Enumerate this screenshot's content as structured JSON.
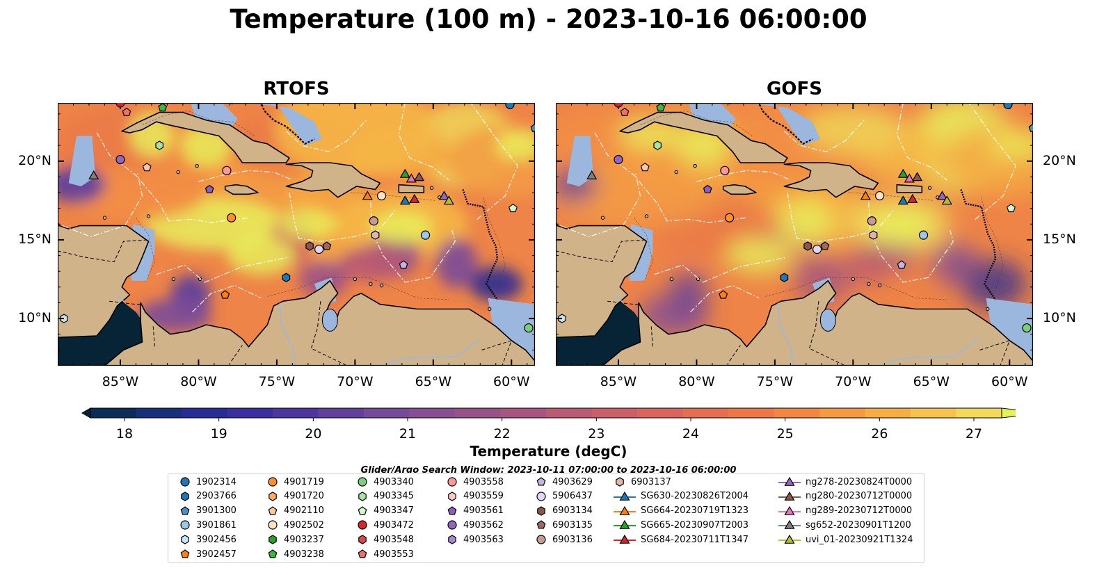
{
  "title": "Temperature (100 m) - 2023-10-16 06:00:00",
  "panels": [
    {
      "title": "RTOFS",
      "y_tick_side": "left"
    },
    {
      "title": "GOFS",
      "y_tick_side": "right"
    }
  ],
  "lon_ticks": [
    {
      "value": -85,
      "label": "85°W"
    },
    {
      "value": -80,
      "label": "80°W"
    },
    {
      "value": -75,
      "label": "75°W"
    },
    {
      "value": -70,
      "label": "70°W"
    },
    {
      "value": -65,
      "label": "65°W"
    },
    {
      "value": -60,
      "label": "60°W"
    }
  ],
  "lat_ticks": [
    {
      "value": 20,
      "label": "20°N"
    },
    {
      "value": 15,
      "label": "15°N"
    },
    {
      "value": 10,
      "label": "10°N"
    }
  ],
  "map_extent": {
    "lon": [
      -89,
      -58.5
    ],
    "lat": [
      7,
      23.7
    ]
  },
  "colorbar": {
    "label": "Temperature (degC)",
    "min": 18,
    "max": 27,
    "step": 0.5,
    "ticks": [
      18,
      19,
      20,
      21,
      22,
      23,
      24,
      25,
      26,
      27
    ],
    "extend": "both",
    "colormap": [
      "#062436",
      "#0a2c55",
      "#17307a",
      "#272d93",
      "#3a2f9c",
      "#4d379e",
      "#61409c",
      "#754a98",
      "#874f91",
      "#975388",
      "#a8567f",
      "#b95b74",
      "#c96069",
      "#d8665e",
      "#e46e52",
      "#ec7849",
      "#f18743",
      "#f49a42",
      "#f6ad46",
      "#f6c44e",
      "#f1d95b",
      "#e7f25b"
    ]
  },
  "search_window": "Glider/Argo Search Window: 2023-10-11 07:00:00 to 2023-10-16 06:00:00",
  "colors": {
    "land": "#d1b38a",
    "shelf": "#9cb7de",
    "coast": "#000000"
  },
  "legend": {
    "columns": [
      [
        {
          "label": "1902314",
          "marker": "circle",
          "color": "#1f77b4"
        },
        {
          "label": "2903766",
          "marker": "hexagon",
          "color": "#1f77b4"
        },
        {
          "label": "3901300",
          "marker": "pentagon",
          "color": "#4a90c4"
        },
        {
          "label": "3901861",
          "marker": "circle",
          "color": "#9ec8ea"
        },
        {
          "label": "3902456",
          "marker": "hexagon",
          "color": "#c6e3f7"
        },
        {
          "label": "3902457",
          "marker": "pentagon",
          "color": "#ff7f0e"
        }
      ],
      [
        {
          "label": "4901719",
          "marker": "circle",
          "color": "#ff8f2a"
        },
        {
          "label": "4901720",
          "marker": "hexagon",
          "color": "#ffad66"
        },
        {
          "label": "4902110",
          "marker": "pentagon",
          "color": "#ffc89a"
        },
        {
          "label": "4902502",
          "marker": "circle",
          "color": "#ffe2c2"
        },
        {
          "label": "4903237",
          "marker": "hexagon",
          "color": "#2ca02c"
        },
        {
          "label": "4903238",
          "marker": "pentagon",
          "color": "#3cb83c"
        }
      ],
      [
        {
          "label": "4903340",
          "marker": "circle",
          "color": "#7ad07a"
        },
        {
          "label": "4903345",
          "marker": "hexagon",
          "color": "#a8e6a0"
        },
        {
          "label": "4903347",
          "marker": "pentagon",
          "color": "#d4f7c8"
        },
        {
          "label": "4903472",
          "marker": "circle",
          "color": "#d62728"
        },
        {
          "label": "4903548",
          "marker": "hexagon",
          "color": "#e0464a"
        },
        {
          "label": "4903553",
          "marker": "pentagon",
          "color": "#ee6f70"
        }
      ],
      [
        {
          "label": "4903558",
          "marker": "circle",
          "color": "#ff9896"
        },
        {
          "label": "4903559",
          "marker": "hexagon",
          "color": "#ffc8c6"
        },
        {
          "label": "4903561",
          "marker": "pentagon",
          "color": "#8c5fbf"
        },
        {
          "label": "4903562",
          "marker": "circle",
          "color": "#9467bd"
        },
        {
          "label": "4903563",
          "marker": "hexagon",
          "color": "#a987d2"
        }
      ],
      [
        {
          "label": "4903629",
          "marker": "pentagon",
          "color": "#c5b0e8"
        },
        {
          "label": "5906437",
          "marker": "circle",
          "color": "#e4d4fb"
        },
        {
          "label": "6903134",
          "marker": "hexagon",
          "color": "#8c564b"
        },
        {
          "label": "6903135",
          "marker": "pentagon",
          "color": "#a0695d"
        },
        {
          "label": "6903136",
          "marker": "circle",
          "color": "#c49c94"
        }
      ],
      [
        {
          "label": "6903137",
          "marker": "hexagon",
          "color": "#e2b4aa"
        },
        {
          "label": "SG630-20230826T2004",
          "marker": "triangle",
          "color": "#1f77b4"
        },
        {
          "label": "SG664-20230719T1323",
          "marker": "triangle",
          "color": "#ff7f0e"
        },
        {
          "label": "SG665-20230907T2003",
          "marker": "triangle",
          "color": "#2ca02c"
        },
        {
          "label": "SG684-20230711T1347",
          "marker": "triangle",
          "color": "#d62728"
        }
      ],
      [
        {
          "label": "ng278-20230824T0000",
          "marker": "triangle",
          "color": "#9467bd"
        },
        {
          "label": "ng280-20230712T0000",
          "marker": "triangle",
          "color": "#8c564b"
        },
        {
          "label": "ng289-20230712T0000",
          "marker": "triangle",
          "color": "#e377c2"
        },
        {
          "label": "sg652-20230901T1200",
          "marker": "triangle",
          "color": "#7f7f7f"
        },
        {
          "label": "uvi_01-20230921T1324",
          "marker": "triangle",
          "color": "#bcbd22"
        }
      ]
    ]
  },
  "observations": [
    {
      "id": "1902314",
      "lon": -60.1,
      "lat": 23.6
    },
    {
      "id": "4903472",
      "lon": -85.0,
      "lat": 23.7
    },
    {
      "id": "4903553",
      "lon": -84.6,
      "lat": 23.1
    },
    {
      "id": "4903238",
      "lon": -82.3,
      "lat": 23.4
    },
    {
      "id": "4903345",
      "lon": -82.5,
      "lat": 21.0
    },
    {
      "id": "4903562",
      "lon": -85.0,
      "lat": 20.1
    },
    {
      "id": "4902110",
      "lon": -83.3,
      "lat": 19.6
    },
    {
      "id": "4903558",
      "lon": -78.2,
      "lat": 19.4
    },
    {
      "id": "4903561",
      "lon": -79.3,
      "lat": 18.2
    },
    {
      "id": "4901719",
      "lon": -77.9,
      "lat": 16.4
    },
    {
      "id": "6903136",
      "lon": -68.8,
      "lat": 16.2
    },
    {
      "id": "6903137",
      "lon": -68.7,
      "lat": 15.3
    },
    {
      "id": "6903134",
      "lon": -72.9,
      "lat": 14.6
    },
    {
      "id": "6903135",
      "lon": -71.8,
      "lat": 14.6
    },
    {
      "id": "5906437",
      "lon": -72.3,
      "lat": 14.4
    },
    {
      "id": "3901861",
      "lon": -65.5,
      "lat": 15.3
    },
    {
      "id": "4903629",
      "lon": -66.9,
      "lat": 13.4
    },
    {
      "id": "2903766",
      "lon": -74.4,
      "lat": 12.6
    },
    {
      "id": "4902502",
      "lon": -68.3,
      "lat": 17.8
    },
    {
      "id": "4903347",
      "lon": -59.9,
      "lat": 17.0
    },
    {
      "id": "4903340",
      "lon": -58.9,
      "lat": 9.4
    },
    {
      "id": "3902456",
      "lon": -88.6,
      "lat": 10.0
    },
    {
      "id": "3902457",
      "lon": -78.3,
      "lat": 11.5
    },
    {
      "id": "3901300",
      "lon": -58.5,
      "lat": 22.1
    },
    {
      "id": "sg652-20230901T1200",
      "lon": -86.7,
      "lat": 19.1
    },
    {
      "id": "SG664-20230719T1323",
      "lon": -69.2,
      "lat": 17.8
    },
    {
      "id": "SG665-20230907T2003",
      "lon": -66.8,
      "lat": 19.2
    },
    {
      "id": "ng289-20230712T0000",
      "lon": -66.4,
      "lat": 18.9
    },
    {
      "id": "ng280-20230712T0000",
      "lon": -65.9,
      "lat": 19.0
    },
    {
      "id": "SG630-20230826T2004",
      "lon": -66.8,
      "lat": 17.5
    },
    {
      "id": "SG684-20230711T1347",
      "lon": -66.2,
      "lat": 17.6
    },
    {
      "id": "ng278-20230824T0000",
      "lon": -64.3,
      "lat": 17.8
    },
    {
      "id": "uvi_01-20230921T1324",
      "lon": -64.0,
      "lat": 17.5
    }
  ]
}
